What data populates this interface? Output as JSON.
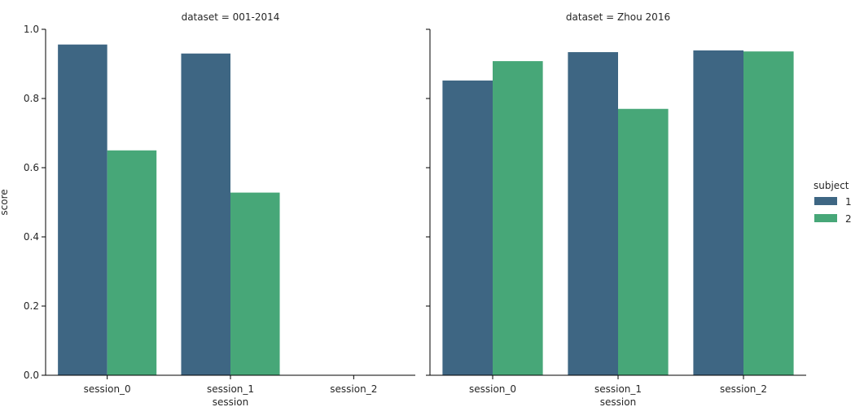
{
  "chart_data": [
    {
      "type": "bar",
      "title": "dataset = 001-2014",
      "xlabel": "session",
      "ylabel": "score",
      "ylim": [
        0,
        1.0
      ],
      "yticks": [
        "0.0",
        "0.2",
        "0.4",
        "0.6",
        "0.8",
        "1.0"
      ],
      "categories": [
        "session_0",
        "session_1",
        "session_2"
      ],
      "series": [
        {
          "name": "1",
          "values": [
            0.956,
            0.93,
            null
          ]
        },
        {
          "name": "2",
          "values": [
            0.65,
            0.528,
            null
          ]
        }
      ]
    },
    {
      "type": "bar",
      "title": "dataset = Zhou 2016",
      "xlabel": "session",
      "ylabel": "",
      "ylim": [
        0,
        1.0
      ],
      "categories": [
        "session_0",
        "session_1",
        "session_2"
      ],
      "series": [
        {
          "name": "1",
          "values": [
            0.852,
            0.934,
            0.939
          ]
        },
        {
          "name": "2",
          "values": [
            0.908,
            0.77,
            0.936
          ]
        }
      ]
    }
  ],
  "legend": {
    "title": "subject",
    "placement": "right",
    "items": [
      {
        "label": "1",
        "color": "#3e6683"
      },
      {
        "label": "2",
        "color": "#47a778"
      }
    ]
  }
}
